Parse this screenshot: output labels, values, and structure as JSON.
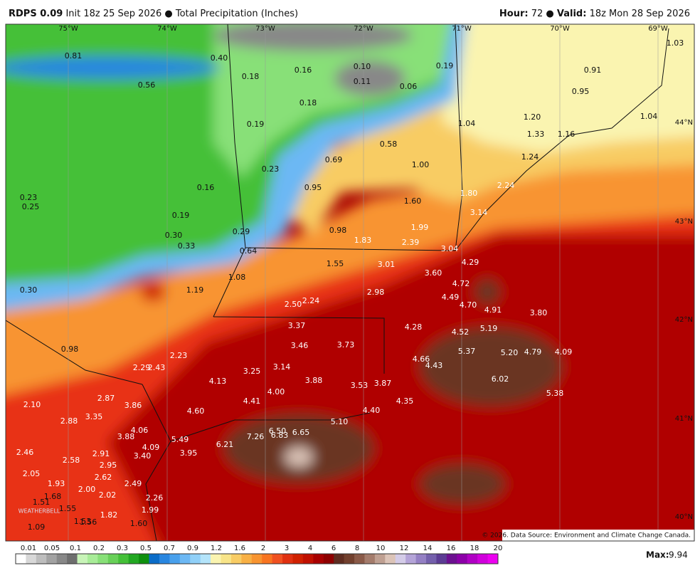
{
  "header": {
    "model": "RDPS 0.09",
    "init": "Init 18z 25 Sep 2026",
    "product": "Total Precipitation (Inches)",
    "hour_label": "Hour:",
    "hour": "72",
    "valid_label": "Valid:",
    "valid": "18z Mon 28 Sep 2026"
  },
  "map": {
    "lon_labels": [
      "75°W",
      "74°W",
      "73°W",
      "72°W",
      "71°W",
      "70°W",
      "69°W"
    ],
    "lat_labels": [
      "44°N",
      "43°N",
      "42°N",
      "41°N",
      "40°N"
    ],
    "values": [
      "0.81",
      "0.40",
      "0.18",
      "0.16",
      "0.10",
      "0.11",
      "0.06",
      "0.19",
      "1.03",
      "0.91",
      "0.95",
      "0.56",
      "0.18",
      "0.19",
      "1.20",
      "1.33",
      "1.16",
      "1.04",
      "1.04",
      "0.58",
      "0.69",
      "1.00",
      "1.24",
      "0.23",
      "0.16",
      "0.95",
      "1.80",
      "2.24",
      "0.23",
      "0.25",
      "0.19",
      "1.60",
      "3.14",
      "0.98",
      "1.83",
      "1.99",
      "2.39",
      "0.30",
      "0.33",
      "0.29",
      "0.64",
      "3.04",
      "1.55",
      "3.01",
      "4.29",
      "3.60",
      "1.08",
      "4.72",
      "0.30",
      "1.19",
      "2.98",
      "4.49",
      "4.70",
      "2.50",
      "2.24",
      "4.91",
      "3.80",
      "3.37",
      "4.28",
      "4.52",
      "5.19",
      "3.46",
      "3.73",
      "5.37",
      "5.20",
      "4.79",
      "4.09",
      "0.98",
      "2.23",
      "2.29",
      "2.43",
      "4.66",
      "4.43",
      "3.25",
      "3.14",
      "6.02",
      "3.88",
      "3.53",
      "3.87",
      "4.13",
      "5.38",
      "4.00",
      "2.87",
      "2.10",
      "3.86",
      "4.41",
      "4.35",
      "4.60",
      "4.40",
      "3.35",
      "2.88",
      "5.10",
      "4.06",
      "6.50",
      "6.65",
      "6.83",
      "3.88",
      "7.26",
      "5.49",
      "6.21",
      "4.09",
      "2.46",
      "2.91",
      "3.40",
      "3.95",
      "2.58",
      "2.95",
      "2.05",
      "2.62",
      "2.49",
      "1.93",
      "2.00",
      "2.02",
      "1.68",
      "2.26",
      "1.51",
      "1.55",
      "1.99",
      "1.82",
      "1.09",
      "1.53",
      "1.56",
      "1.60"
    ],
    "logo": "WEATHERBELL",
    "copyright": "© 2026. Data Source: Environment and Climate Change Canada."
  },
  "legend": {
    "ticks": [
      "0.01",
      "0.05",
      "0.1",
      "0.2",
      "0.3",
      "0.5",
      "0.7",
      "0.9",
      "1.2",
      "1.6",
      "2",
      "3",
      "4",
      "6",
      "8",
      "10",
      "12",
      "14",
      "16",
      "18",
      "20"
    ],
    "colors": [
      "#ffffff",
      "#d8d8d8",
      "#bdbdbd",
      "#a2a2a2",
      "#888888",
      "#6e6e6e",
      "#c8f4b8",
      "#a8ec98",
      "#88e078",
      "#68d058",
      "#44c038",
      "#22a822",
      "#0e900e",
      "#0a6cc8",
      "#2886e0",
      "#48a0ec",
      "#6cb8f4",
      "#90d0f8",
      "#b4e4fa",
      "#faf4b0",
      "#f8e488",
      "#f8cc64",
      "#f8b044",
      "#f89430",
      "#f87420",
      "#f05020",
      "#e03010",
      "#d02000",
      "#c01000",
      "#a80000",
      "#8e0000",
      "#5e2c20",
      "#72402e",
      "#8a5a48",
      "#a47c6c",
      "#bfa092",
      "#dcc4b8",
      "#d4cce8",
      "#b4a4d8",
      "#9480c4",
      "#7460ac",
      "#5c3c94",
      "#6c1090",
      "#8c00a8",
      "#b000c4",
      "#d000dc",
      "#ec00f0"
    ]
  },
  "footer": {
    "max_label": "Max:",
    "max": "9.94"
  }
}
